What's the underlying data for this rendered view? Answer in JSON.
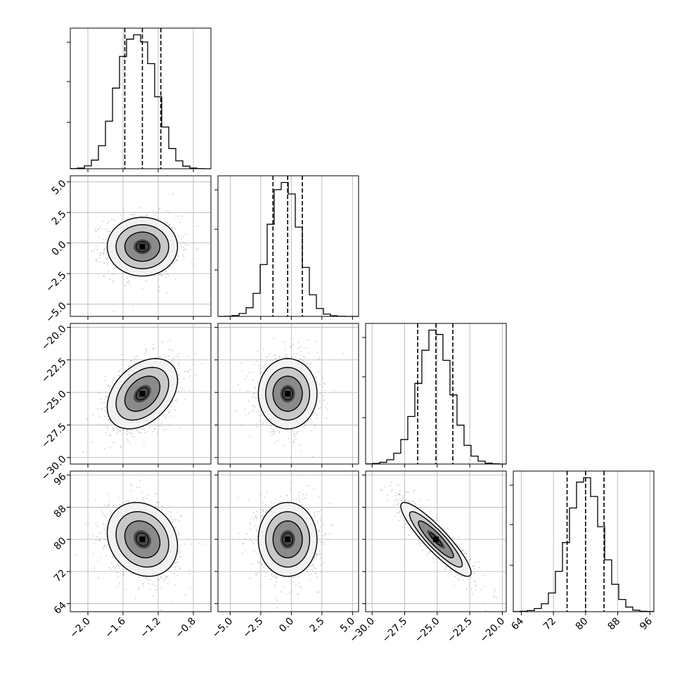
{
  "chart_data": {
    "type": "scatter",
    "title": "",
    "figure": "corner plot",
    "grid": true,
    "parameters": [
      {
        "index": 0,
        "range": [
          -2.2,
          -0.6
        ],
        "ticks": [
          "−2.0",
          "−1.6",
          "−1.2",
          "−0.8"
        ],
        "tick_values": [
          -2.0,
          -1.6,
          -1.2,
          -0.8
        ],
        "quantiles": [
          -1.58,
          -1.38,
          -1.17
        ],
        "median": -1.38,
        "sigma": 0.2
      },
      {
        "index": 1,
        "range": [
          -6.0,
          5.5
        ],
        "ticks": [
          "−5.0",
          "−2.5",
          "0.0",
          "2.5",
          "5.0"
        ],
        "tick_values": [
          -5.0,
          -2.5,
          0.0,
          2.5,
          5.0
        ],
        "quantiles": [
          -1.5,
          -0.3,
          0.9
        ],
        "median": -0.3,
        "sigma": 1.2
      },
      {
        "index": 2,
        "range": [
          -30.5,
          -19.7
        ],
        "ticks": [
          "−30.0",
          "−27.5",
          "−25.0",
          "−22.5",
          "−20.0"
        ],
        "tick_values": [
          -30.0,
          -27.5,
          -25.0,
          -22.5,
          -20.0
        ],
        "quantiles": [
          -26.5,
          -25.1,
          -23.8
        ],
        "median": -25.1,
        "sigma": 1.35
      },
      {
        "index": 3,
        "range": [
          62.0,
          97.0
        ],
        "ticks": [
          "64",
          "72",
          "80",
          "88",
          "96"
        ],
        "tick_values": [
          64,
          72,
          80,
          88,
          96
        ],
        "quantiles": [
          75.4,
          80.0,
          84.6
        ],
        "median": 80.0,
        "sigma": 4.6
      }
    ],
    "diagonal_histograms": [
      {
        "parameter": 0,
        "bin_edges": [
          -2.2,
          -0.6
        ],
        "bins": 20,
        "counts": [
          1,
          5,
          20,
          60,
          160,
          330,
          560,
          780,
          900,
          930,
          880,
          730,
          500,
          290,
          140,
          55,
          18,
          5,
          1,
          0
        ]
      },
      {
        "parameter": 1,
        "bins": 20,
        "counts": [
          0,
          1,
          6,
          20,
          60,
          160,
          360,
          640,
          880,
          930,
          850,
          620,
          340,
          150,
          55,
          16,
          4,
          1,
          0,
          0
        ]
      },
      {
        "parameter": 2,
        "bins": 20,
        "counts": [
          1,
          4,
          12,
          30,
          75,
          170,
          330,
          560,
          790,
          930,
          900,
          720,
          480,
          270,
          130,
          55,
          20,
          6,
          2,
          0
        ]
      },
      {
        "parameter": 3,
        "bins": 20,
        "counts": [
          1,
          3,
          8,
          22,
          55,
          130,
          280,
          480,
          720,
          900,
          930,
          800,
          590,
          360,
          190,
          85,
          32,
          10,
          3,
          1
        ]
      }
    ],
    "pair_correlations": [
      {
        "x": 0,
        "y": 1,
        "rho": 0.0
      },
      {
        "x": 0,
        "y": 2,
        "rho": 0.38
      },
      {
        "x": 1,
        "y": 2,
        "rho": 0.0
      },
      {
        "x": 0,
        "y": 3,
        "rho": -0.18
      },
      {
        "x": 1,
        "y": 3,
        "rho": 0.0
      },
      {
        "x": 2,
        "y": 3,
        "rho": -0.9
      }
    ],
    "contour_levels_sigma": [
      0.5,
      1.0,
      1.5,
      2.0
    ],
    "scatter_color": "#aaaaaa",
    "density_color": "#000000",
    "line_color": "#000000"
  }
}
